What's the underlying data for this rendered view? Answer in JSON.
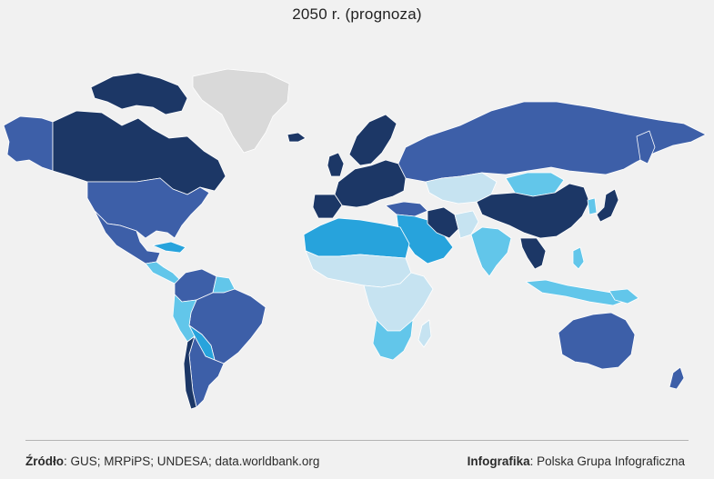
{
  "title": "2050 r. (prognoza)",
  "legend_colors": {
    "darkest": "#1c3766",
    "dark": "#3d5fa8",
    "mid": "#27a3dc",
    "light": "#62c6ea",
    "lightest": "#c6e3f1",
    "no_data": "#d9d9d9"
  },
  "footer": {
    "source_label": "Źródło",
    "source_value": ": GUS; MRPiPS; UNDESA; data.worldbank.org",
    "credit_label": "Infografika",
    "credit_value": ": Polska Grupa Infograficzna"
  }
}
